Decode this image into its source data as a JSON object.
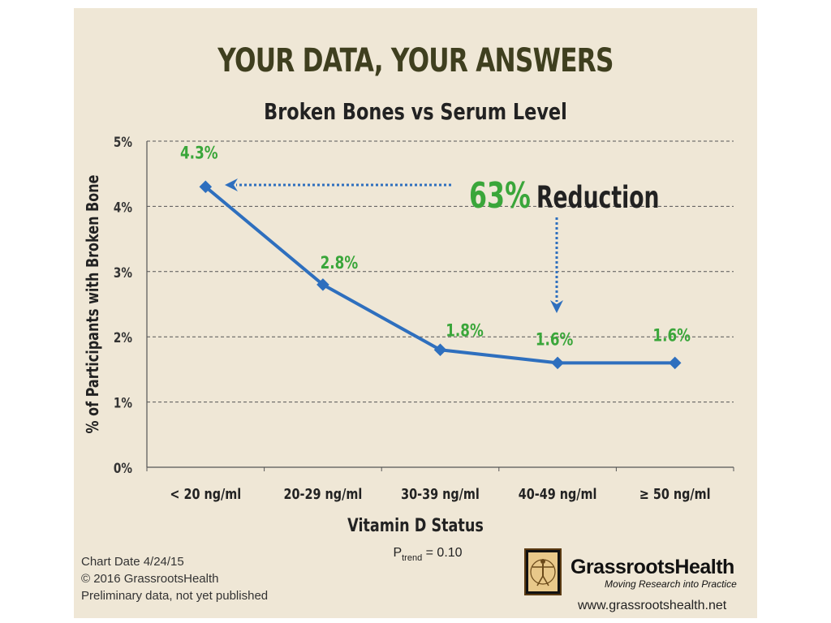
{
  "chart_data": {
    "type": "line",
    "title": "YOUR DATA, YOUR ANSWERS",
    "subtitle": "Broken Bones vs Serum Level",
    "xlabel": "Vitamin D Status",
    "ylabel": "% of Participants with Broken Bone",
    "categories": [
      "< 20 ng/ml",
      "20-29 ng/ml",
      "30-39 ng/ml",
      "40-49 ng/ml",
      "≥ 50 ng/ml"
    ],
    "values": [
      4.3,
      2.8,
      1.8,
      1.6,
      1.6
    ],
    "data_labels": [
      "4.3%",
      "2.8%",
      "1.8%",
      "1.6%",
      "1.6%"
    ],
    "ylim": [
      0,
      5
    ],
    "yticks": [
      "0%",
      "1%",
      "2%",
      "3%",
      "4%",
      "5%"
    ],
    "grid": "horizontal-dashed",
    "annotation": {
      "percent": "63%",
      "text": "Reduction"
    },
    "p_trend": {
      "label": "P",
      "subscript": "trend",
      "value": "= 0.10"
    },
    "colors": {
      "line": "#2e6fbe",
      "labels": "#3aa63a",
      "background": "#efe7d6",
      "title": "#3f3f1f"
    }
  },
  "footer": {
    "chart_date": "Chart Date 4/24/15",
    "copyright": "© 2016 GrassrootsHealth",
    "note": "Preliminary data, not yet published"
  },
  "brand": {
    "name": "GrassrootsHealth",
    "tagline": "Moving Research into Practice",
    "url": "www.grassrootshealth.net",
    "logo_icon": "vitruvian-man-icon"
  }
}
